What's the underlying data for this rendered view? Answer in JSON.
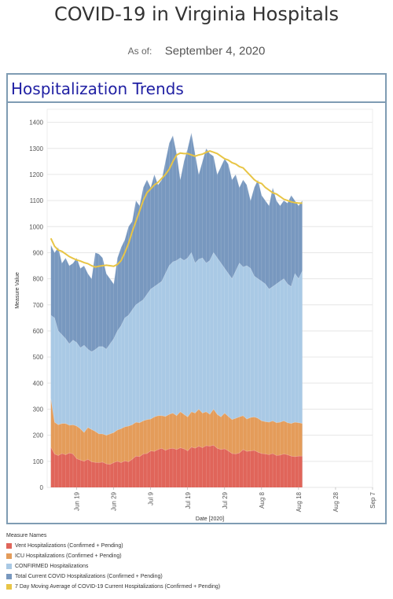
{
  "header": {
    "title": "COVID-19 in Virginia Hospitals",
    "as_of_label": "As of:",
    "as_of_date": "September 4, 2020"
  },
  "panel": {
    "title": "Hospitalization Trends"
  },
  "chart_data": {
    "type": "area",
    "xlabel": "Date [2020]",
    "ylabel": "Measure Value",
    "ylim": [
      0,
      1450
    ],
    "yticks": [
      0,
      100,
      200,
      300,
      400,
      500,
      600,
      700,
      800,
      900,
      1000,
      1100,
      1200,
      1300,
      1400
    ],
    "x_start": "2020-06-12",
    "x_ticks": [
      {
        "label": "Jun 19",
        "date": "2020-06-19"
      },
      {
        "label": "Jun 29",
        "date": "2020-06-29"
      },
      {
        "label": "Jul 9",
        "date": "2020-07-09"
      },
      {
        "label": "Jul 19",
        "date": "2020-07-19"
      },
      {
        "label": "Jul 29",
        "date": "2020-07-29"
      },
      {
        "label": "Aug 8",
        "date": "2020-08-08"
      },
      {
        "label": "Aug 18",
        "date": "2020-08-18"
      },
      {
        "label": "Aug 28",
        "date": "2020-08-28"
      },
      {
        "label": "Sep 7",
        "date": "2020-09-07"
      }
    ],
    "x_range": [
      "2020-06-11",
      "2020-09-07"
    ],
    "grid": true,
    "colors": {
      "vent": "#e0655a",
      "icu": "#e49c5a",
      "confirmed": "#a9c9e5",
      "total": "#7898bf",
      "avg": "#e8c546"
    },
    "series": [
      {
        "name": "Vent Hospitalizations (Confirmed + Pending)",
        "key": "vent",
        "color": "#e0655a",
        "kind": "area",
        "values": [
          155,
          128,
          122,
          130,
          125,
          132,
          128,
          110,
          105,
          100,
          108,
          98,
          96,
          95,
          97,
          90,
          88,
          95,
          100,
          95,
          102,
          98,
          108,
          120,
          118,
          128,
          130,
          140,
          138,
          145,
          150,
          142,
          148,
          150,
          145,
          152,
          148,
          140,
          155,
          150,
          158,
          152,
          160,
          158,
          162,
          150,
          145,
          148,
          140,
          130,
          128,
          132,
          145,
          138,
          140,
          142,
          135,
          130,
          128,
          125,
          130,
          122,
          124,
          128,
          125,
          120,
          118,
          120,
          120
        ]
      },
      {
        "name": "ICU Hospitalizations (Confirmed + Pending)",
        "key": "icu",
        "color": "#e49c5a",
        "kind": "area",
        "values": [
          340,
          250,
          240,
          245,
          245,
          238,
          240,
          235,
          225,
          210,
          230,
          222,
          215,
          205,
          205,
          200,
          205,
          210,
          220,
          225,
          232,
          235,
          240,
          250,
          248,
          255,
          260,
          262,
          270,
          275,
          275,
          272,
          280,
          285,
          275,
          290,
          280,
          270,
          290,
          285,
          300,
          285,
          290,
          280,
          300,
          280,
          270,
          285,
          272,
          260,
          265,
          270,
          275,
          262,
          268,
          270,
          265,
          255,
          252,
          250,
          255,
          248,
          250,
          255,
          248,
          245,
          250,
          248,
          245
        ]
      },
      {
        "name": "CONFIRMED Hospitalizations",
        "key": "confirmed",
        "color": "#a9c9e5",
        "kind": "area",
        "values": [
          660,
          650,
          600,
          585,
          570,
          550,
          565,
          555,
          535,
          545,
          530,
          520,
          528,
          540,
          540,
          530,
          550,
          570,
          600,
          620,
          650,
          660,
          680,
          700,
          710,
          720,
          740,
          760,
          770,
          780,
          790,
          820,
          850,
          865,
          870,
          880,
          870,
          880,
          900,
          860,
          875,
          880,
          860,
          870,
          900,
          880,
          860,
          840,
          820,
          800,
          830,
          860,
          845,
          850,
          840,
          810,
          800,
          790,
          780,
          760,
          770,
          780,
          790,
          800,
          780,
          770,
          820,
          800,
          830
        ]
      },
      {
        "name": "Total Current COVID Hospitalizations (Confirmed + Pending)",
        "key": "total",
        "color": "#7898bf",
        "kind": "area",
        "values": [
          930,
          900,
          920,
          860,
          880,
          850,
          860,
          880,
          840,
          850,
          820,
          800,
          900,
          895,
          880,
          820,
          800,
          780,
          880,
          920,
          950,
          1000,
          1020,
          1100,
          1080,
          1150,
          1180,
          1150,
          1200,
          1160,
          1180,
          1250,
          1320,
          1350,
          1280,
          1180,
          1250,
          1300,
          1360,
          1280,
          1200,
          1250,
          1300,
          1280,
          1270,
          1200,
          1230,
          1260,
          1240,
          1180,
          1200,
          1150,
          1180,
          1160,
          1100,
          1150,
          1180,
          1120,
          1100,
          1080,
          1150,
          1100,
          1080,
          1100,
          1090,
          1120,
          1100,
          1080,
          1100
        ]
      },
      {
        "name": "7 Day Moving Average of COVID-19 Current Hospitalizations (Confirmed + Pending)",
        "key": "avg",
        "color": "#e8c546",
        "kind": "line",
        "values": [
          955,
          925,
          910,
          905,
          895,
          885,
          878,
          872,
          868,
          862,
          858,
          850,
          845,
          848,
          850,
          852,
          850,
          848,
          855,
          870,
          900,
          935,
          980,
          1020,
          1060,
          1100,
          1130,
          1145,
          1160,
          1170,
          1185,
          1200,
          1220,
          1250,
          1275,
          1282,
          1280,
          1280,
          1275,
          1270,
          1275,
          1278,
          1285,
          1290,
          1285,
          1280,
          1270,
          1260,
          1255,
          1245,
          1240,
          1230,
          1225,
          1210,
          1195,
          1180,
          1170,
          1165,
          1150,
          1140,
          1130,
          1125,
          1115,
          1105,
          1100,
          1095,
          1092,
          1090,
          1090
        ]
      }
    ]
  },
  "legend": {
    "title": "Measure Names",
    "items": [
      {
        "label": "Vent Hospitalizations (Confirmed + Pending)",
        "color": "#e0655a"
      },
      {
        "label": "ICU Hospitalizations (Confirmed + Pending)",
        "color": "#e49c5a"
      },
      {
        "label": "CONFIRMED Hospitalizations",
        "color": "#a9c9e5"
      },
      {
        "label": "Total Current COVID Hospitalizations (Confirmed + Pending)",
        "color": "#7898bf"
      },
      {
        "label": "7 Day Moving Average of COVID-19 Current Hospitalizations (Confirmed + Pending)",
        "color": "#e8c546"
      }
    ]
  }
}
